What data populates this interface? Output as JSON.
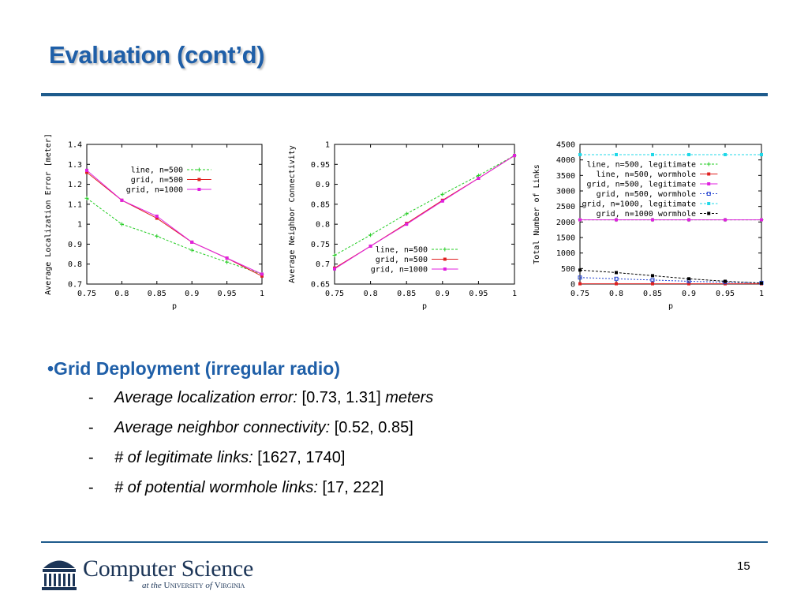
{
  "slide": {
    "title": "Evaluation (cont’d)",
    "page_number": "15"
  },
  "bullets": {
    "main": "•Grid Deployment (irregular radio)",
    "items": [
      {
        "dash": "-",
        "label": "Average localization error:",
        "value": "[0.73, 1.31]",
        "suffix": "meters"
      },
      {
        "dash": "-",
        "label": "Average neighbor connectivity:",
        "value": "[0.52, 0.85]",
        "suffix": ""
      },
      {
        "dash": "-",
        "label": "# of legitimate links:",
        "value": "[1627, 1740]",
        "suffix": ""
      },
      {
        "dash": "-",
        "label": "# of potential wormhole links:",
        "value": "[17, 222]",
        "suffix": ""
      }
    ]
  },
  "footer": {
    "logo_line1": "Computer Science",
    "logo_line2_a": "at the",
    "logo_line2_b": "University",
    "logo_line2_c": "of",
    "logo_line2_d": "Virginia"
  },
  "colors": {
    "title": "#1f5fa8",
    "rule": "#1e5b8c",
    "green": "#22cc22",
    "red": "#e02020",
    "magenta": "#e020e0",
    "blue": "#2040d0",
    "cyan": "#20d8e8",
    "black": "#000000"
  },
  "chart_data": [
    {
      "type": "line",
      "xlabel": "p",
      "ylabel": "Average Localization Error [meter]",
      "x": [
        0.75,
        0.8,
        0.85,
        0.9,
        0.95,
        1
      ],
      "xlim": [
        0.75,
        1
      ],
      "ylim": [
        0.7,
        1.4
      ],
      "xticks": [
        "0.75",
        "0.8",
        "0.85",
        "0.9",
        "0.95",
        "1"
      ],
      "yticks": [
        "0.7",
        "0.8",
        "0.9",
        "1",
        "1.1",
        "1.2",
        "1.3",
        "1.4"
      ],
      "legend_position": "top-right",
      "series": [
        {
          "name": "line, n=500",
          "color": "green",
          "values": [
            1.13,
            1.0,
            0.94,
            0.87,
            0.81,
            0.75
          ]
        },
        {
          "name": "grid, n=500",
          "color": "red",
          "values": [
            1.26,
            1.12,
            1.03,
            0.91,
            0.83,
            0.74
          ]
        },
        {
          "name": "grid, n=1000",
          "color": "magenta",
          "values": [
            1.27,
            1.12,
            1.04,
            0.91,
            0.83,
            0.75
          ]
        }
      ]
    },
    {
      "type": "line",
      "xlabel": "p",
      "ylabel": "Average Neighbor Connectivity",
      "x": [
        0.75,
        0.8,
        0.85,
        0.9,
        0.95,
        1
      ],
      "xlim": [
        0.75,
        1
      ],
      "ylim": [
        0.65,
        1
      ],
      "xticks": [
        "0.75",
        "0.8",
        "0.85",
        "0.9",
        "0.95",
        "1"
      ],
      "yticks": [
        "0.65",
        "0.7",
        "0.75",
        "0.8",
        "0.85",
        "0.9",
        "0.95",
        "1"
      ],
      "legend_position": "bottom-right",
      "series": [
        {
          "name": "line, n=500",
          "color": "green",
          "values": [
            0.722,
            0.773,
            0.826,
            0.875,
            0.922,
            0.972
          ]
        },
        {
          "name": "grid, n=500",
          "color": "red",
          "values": [
            0.69,
            0.745,
            0.802,
            0.86,
            0.915,
            0.972
          ]
        },
        {
          "name": "grid, n=1000",
          "color": "magenta",
          "values": [
            0.688,
            0.745,
            0.8,
            0.858,
            0.915,
            0.972
          ]
        }
      ]
    },
    {
      "type": "line",
      "xlabel": "p",
      "ylabel": "Total Number of Links",
      "x": [
        0.75,
        0.8,
        0.85,
        0.9,
        0.95,
        1
      ],
      "xlim": [
        0.75,
        1
      ],
      "ylim": [
        0,
        4500
      ],
      "xticks": [
        "0.75",
        "0.8",
        "0.85",
        "0.9",
        "0.95",
        "1"
      ],
      "yticks": [
        "0",
        "500",
        "1000",
        "1500",
        "2000",
        "2500",
        "3000",
        "3500",
        "4000",
        "4500"
      ],
      "legend_position": "top-right",
      "series": [
        {
          "name": "line, n=500, legitimate",
          "color": "green",
          "values": [
            2070,
            2070,
            2070,
            2070,
            2070,
            2070
          ]
        },
        {
          "name": "line, n=500, wormhole",
          "color": "red",
          "values": [
            10,
            10,
            10,
            10,
            10,
            10
          ]
        },
        {
          "name": "grid, n=500, legitimate",
          "color": "magenta",
          "values": [
            2070,
            2070,
            2070,
            2070,
            2070,
            2070
          ]
        },
        {
          "name": "grid, n=500, wormhole",
          "color": "blue",
          "values": [
            210,
            170,
            130,
            90,
            60,
            40
          ]
        },
        {
          "name": "grid, n=1000, legitimate",
          "color": "cyan",
          "values": [
            4170,
            4170,
            4170,
            4170,
            4170,
            4170
          ]
        },
        {
          "name": "grid, n=1000 wormhole",
          "color": "black",
          "values": [
            450,
            370,
            270,
            170,
            90,
            30
          ]
        }
      ]
    }
  ]
}
